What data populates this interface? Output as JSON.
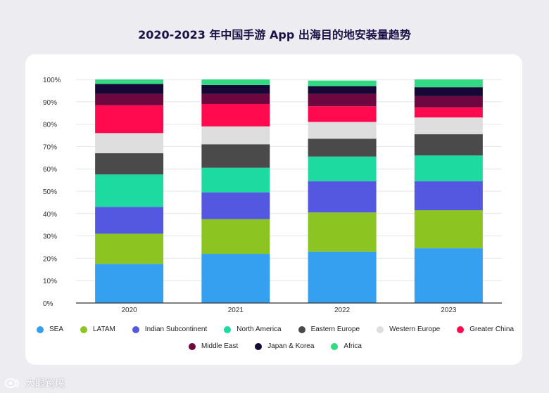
{
  "chart_data": {
    "type": "bar",
    "stacked": true,
    "title": "2020-2023 年中国手游 App 出海目的地安装量趋势",
    "categories": [
      "2020",
      "2021",
      "2022",
      "2023"
    ],
    "ylim": [
      0,
      100
    ],
    "yticks": [
      0,
      10,
      20,
      30,
      40,
      50,
      60,
      70,
      80,
      90,
      100
    ],
    "ytick_labels": [
      "0%",
      "10%",
      "20%",
      "30%",
      "40%",
      "50%",
      "60%",
      "70%",
      "80%",
      "90%",
      "100%"
    ],
    "grid": true,
    "legend_position": "bottom",
    "series": [
      {
        "name": "SEA",
        "color": "#35a0f0",
        "values": [
          17.5,
          22,
          23,
          24.5
        ]
      },
      {
        "name": "LATAM",
        "color": "#8cc522",
        "values": [
          13.5,
          15.5,
          17.5,
          17
        ]
      },
      {
        "name": "Indian Subcontinent",
        "color": "#5458e0",
        "values": [
          12,
          12,
          14,
          13
        ]
      },
      {
        "name": "North America",
        "color": "#1ddba0",
        "values": [
          14.5,
          11,
          11,
          11.5
        ]
      },
      {
        "name": "Eastern Europe",
        "color": "#4a4a4a",
        "values": [
          9.5,
          10.5,
          8,
          9.5
        ]
      },
      {
        "name": "Western Europe",
        "color": "#dedede",
        "values": [
          9,
          8,
          7.5,
          7.5
        ]
      },
      {
        "name": "Greater China",
        "color": "#ff0a4e",
        "values": [
          12.5,
          10,
          7,
          4.5
        ]
      },
      {
        "name": "Middle East",
        "color": "#6e0740",
        "values": [
          5,
          4.5,
          5.5,
          5
        ]
      },
      {
        "name": "Japan & Korea",
        "color": "#170736",
        "values": [
          4.5,
          4,
          3.5,
          4
        ]
      },
      {
        "name": "Africa",
        "color": "#34d984",
        "values": [
          2,
          2.5,
          2.5,
          3.5
        ]
      }
    ]
  },
  "watermark": {
    "text": "大眼跨境"
  }
}
